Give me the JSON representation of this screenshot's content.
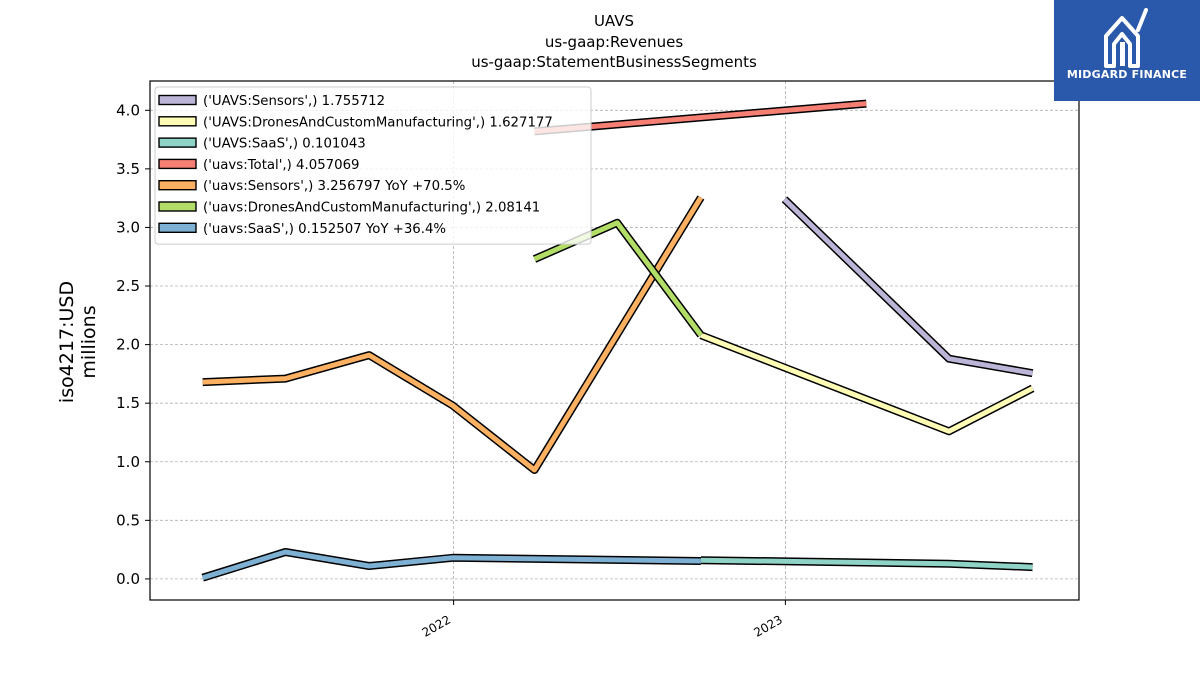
{
  "chart_data": {
    "type": "line",
    "title": "UAVS",
    "subtitles": [
      "us-gaap:Revenues",
      "us-gaap:StatementBusinessSegments"
    ],
    "xlabel": "",
    "ylabel": "iso4217:USD",
    "ylabel2": "millions",
    "xlim": [
      "2021-02-01",
      "2023-11-20"
    ],
    "ylim": [
      -0.18,
      4.25
    ],
    "x_ticks": [
      "2022-01-01",
      "2023-01-01"
    ],
    "x_tick_labels": [
      "2022",
      "2023"
    ],
    "y_ticks": [
      0.0,
      0.5,
      1.0,
      1.5,
      2.0,
      2.5,
      3.0,
      3.5,
      4.0
    ],
    "y_tick_labels": [
      "0.0",
      "0.5",
      "1.0",
      "1.5",
      "2.0",
      "2.5",
      "3.0",
      "3.5",
      "4.0"
    ],
    "grid": true,
    "legend_position": "top-left",
    "series": [
      {
        "name": "('UAVS:Sensors',) 1.755712",
        "color": "#bcb5d7",
        "x": [
          "2022-12-31",
          "2023-06-30",
          "2023-09-30"
        ],
        "y": [
          3.24,
          1.88,
          1.755712
        ]
      },
      {
        "name": "('UAVS:DronesAndCustomManufacturing',) 1.627177",
        "color": "#fffcb5",
        "x": [
          "2022-09-30",
          "2023-06-30",
          "2023-09-30"
        ],
        "y": [
          2.08,
          1.26,
          1.627177
        ]
      },
      {
        "name": "('UAVS:SaaS',) 0.101043",
        "color": "#8ed3c6",
        "x": [
          "2022-09-30",
          "2023-06-30",
          "2023-09-30"
        ],
        "y": [
          0.16,
          0.13,
          0.101043
        ]
      },
      {
        "name": "('uavs:Total',) 4.057069",
        "color": "#f47f72",
        "x": [
          "2022-03-31",
          "2023-03-31"
        ],
        "y": [
          3.82,
          4.057069
        ]
      },
      {
        "name": "('uavs:Sensors',) 3.256797 YoY +70.5%",
        "color": "#fcb061",
        "x": [
          "2021-03-31",
          "2021-06-30",
          "2021-09-30",
          "2021-12-31",
          "2022-03-31",
          "2022-09-30"
        ],
        "y": [
          1.68,
          1.71,
          1.91,
          1.48,
          0.93,
          3.256797
        ]
      },
      {
        "name": "('uavs:DronesAndCustomManufacturing',) 2.08141",
        "color": "#b2de68",
        "x": [
          "2022-03-31",
          "2022-06-30",
          "2022-09-30"
        ],
        "y": [
          2.73,
          3.04,
          2.08141
        ]
      },
      {
        "name": "('uavs:SaaS',) 0.152507 YoY +36.4%",
        "color": "#7eb0d4",
        "x": [
          "2021-03-31",
          "2021-06-30",
          "2021-09-30",
          "2021-12-31",
          "2022-09-30"
        ],
        "y": [
          0.01,
          0.23,
          0.11,
          0.18,
          0.152507
        ]
      }
    ]
  },
  "branding": {
    "logo_text": "MIDGARD FINANCE",
    "background": "#2a58ab"
  }
}
